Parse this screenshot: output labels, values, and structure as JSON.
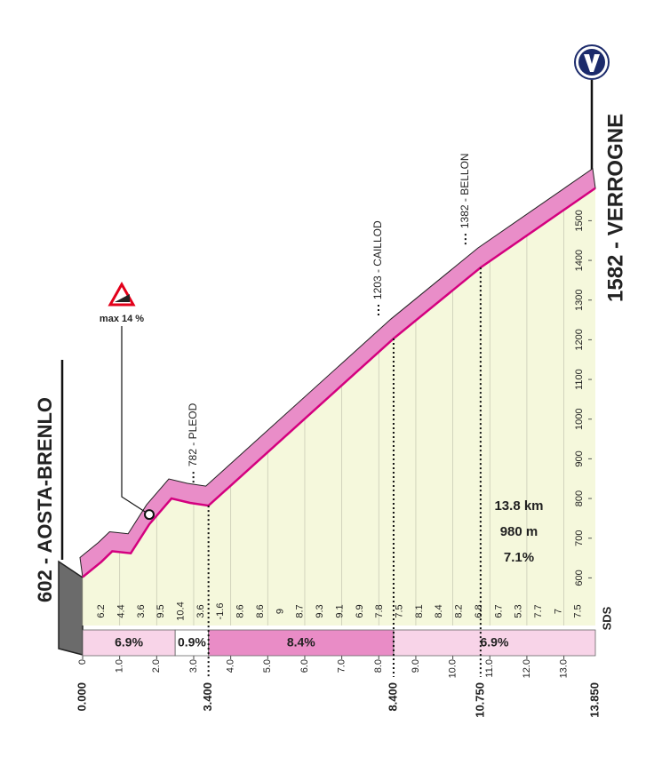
{
  "chart_data": {
    "type": "profile",
    "start_label": "602 - AOSTA-BRENLO",
    "finish_label": "1582 - VERROGNE",
    "x": [
      0,
      0.5,
      0.8,
      1.3,
      1.8,
      2.4,
      2.9,
      3.4,
      8.4,
      10.75,
      13.85
    ],
    "values": [
      602,
      640,
      667,
      662,
      735,
      800,
      789,
      782,
      1203,
      1382,
      1582
    ],
    "color": "#d4007f",
    "band_color": "#e98dc8",
    "area_color": "#f5f8dc",
    "xlim": [
      0,
      13.85
    ],
    "ylim": [
      480,
      1680
    ],
    "yticks": [
      600,
      700,
      800,
      900,
      1000,
      1100,
      1200,
      1300,
      1400,
      1500
    ],
    "xticks": [
      0,
      {
        "value": 1,
        "label": "1.0"
      },
      {
        "value": 2,
        "label": "2.0"
      },
      {
        "value": 3,
        "label": "3.0"
      },
      {
        "value": 4,
        "label": "4.0"
      },
      {
        "value": 5,
        "label": "5.0"
      },
      {
        "value": 6,
        "label": "6.0"
      },
      {
        "value": 7,
        "label": "7.0"
      },
      {
        "value": 8,
        "label": "8.0"
      },
      {
        "value": 9,
        "label": "9.0"
      },
      {
        "value": 10,
        "label": "10.0"
      },
      {
        "value": 11,
        "label": "11.0"
      },
      {
        "value": 12,
        "label": "12.0"
      },
      {
        "value": 13,
        "label": "13.0"
      }
    ],
    "grid": true,
    "key_points": [
      {
        "value": 0,
        "label": "0.000"
      },
      {
        "value": 3.4,
        "label": "3.400"
      },
      {
        "value": 8.4,
        "label": "8.400"
      },
      {
        "value": 10.75,
        "label": "10.750"
      },
      {
        "value": 13.85,
        "label": "13.850"
      }
    ],
    "waypoints": [
      {
        "label": "782 - PLEOD",
        "km": 3.4
      },
      {
        "label": "1203 - CAILLOD",
        "km": 8.4
      },
      {
        "label": "1382 - BELLON",
        "km": 10.75
      }
    ],
    "gradients": [
      6.2,
      4.4,
      3.6,
      9.5,
      10.4,
      3.6,
      -1.6,
      8.6,
      8.6,
      9.0,
      8.7,
      9.3,
      9.1,
      6.9,
      7.8,
      7.5,
      8.1,
      8.4,
      8.2,
      6.8,
      6.7,
      5.3,
      7.7,
      7.0,
      7.5
    ],
    "sections": [
      {
        "start": 0,
        "end": 2.5,
        "value": 6.9,
        "label": "6.9%",
        "color": "#f8d4e8"
      },
      {
        "start": 2.5,
        "end": 3.4,
        "value": 0.9,
        "label": "0.9%",
        "color": "#ffffff"
      },
      {
        "start": 3.4,
        "end": 8.4,
        "value": 8.4,
        "label": "8.4%",
        "color": "#e98cc6"
      },
      {
        "start": 8.4,
        "end": 13.85,
        "value": 6.9,
        "label": "6.9%",
        "color": "#f8d4e8"
      }
    ],
    "max_gradient": {
      "label": "max 14 %",
      "km": 1.8
    },
    "summary": [
      "13.8 km",
      "980 m",
      "7.1%"
    ],
    "logo": "SDS"
  }
}
